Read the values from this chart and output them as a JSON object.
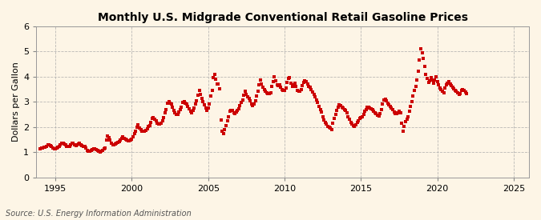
{
  "title": "Monthly U.S. Midgrade Conventional Retail Gasoline Prices",
  "ylabel": "Dollars per Gallon",
  "source": "Source: U.S. Energy Information Administration",
  "background_color": "#fdf5e6",
  "line_color": "#cc0000",
  "marker": "s",
  "markersize": 2.5,
  "linewidth": 0,
  "xlim": [
    1993.75,
    2026.0
  ],
  "ylim": [
    0,
    6
  ],
  "yticks": [
    0,
    1,
    2,
    3,
    4,
    5,
    6
  ],
  "xticks": [
    1995,
    2000,
    2005,
    2010,
    2015,
    2020,
    2025
  ],
  "grid_color": "#aaaaaa",
  "grid_linestyle": "--",
  "grid_alpha": 0.8,
  "prices": [
    1.12,
    1.17,
    1.18,
    1.2,
    1.21,
    1.24,
    1.28,
    1.31,
    1.27,
    1.22,
    1.17,
    1.14,
    1.13,
    1.17,
    1.2,
    1.23,
    1.3,
    1.37,
    1.35,
    1.34,
    1.29,
    1.24,
    1.22,
    1.24,
    1.3,
    1.35,
    1.36,
    1.31,
    1.26,
    1.28,
    1.33,
    1.35,
    1.3,
    1.26,
    1.24,
    1.22,
    1.16,
    1.08,
    1.03,
    1.05,
    1.08,
    1.1,
    1.12,
    1.13,
    1.1,
    1.07,
    1.04,
    1.02,
    1.03,
    1.08,
    1.12,
    1.18,
    1.48,
    1.65,
    1.57,
    1.47,
    1.35,
    1.29,
    1.3,
    1.32,
    1.36,
    1.4,
    1.43,
    1.47,
    1.54,
    1.6,
    1.56,
    1.52,
    1.48,
    1.45,
    1.45,
    1.47,
    1.52,
    1.62,
    1.73,
    1.83,
    1.98,
    2.09,
    1.97,
    1.91,
    1.85,
    1.84,
    1.85,
    1.86,
    1.93,
    2.01,
    2.07,
    2.18,
    2.34,
    2.38,
    2.32,
    2.25,
    2.16,
    2.12,
    2.11,
    2.14,
    2.26,
    2.38,
    2.55,
    2.69,
    2.96,
    3.0,
    2.96,
    2.9,
    2.79,
    2.66,
    2.55,
    2.49,
    2.51,
    2.61,
    2.7,
    2.8,
    2.97,
    3.02,
    2.96,
    2.9,
    2.81,
    2.72,
    2.63,
    2.57,
    2.65,
    2.75,
    2.9,
    3.04,
    3.26,
    3.45,
    3.3,
    3.15,
    3.02,
    2.88,
    2.76,
    2.65,
    2.76,
    2.93,
    3.22,
    3.44,
    3.96,
    4.09,
    3.9,
    3.72,
    3.71,
    3.51,
    2.27,
    1.82,
    1.73,
    1.89,
    2.07,
    2.26,
    2.4,
    2.62,
    2.66,
    2.66,
    2.58,
    2.52,
    2.59,
    2.66,
    2.72,
    2.84,
    2.97,
    3.06,
    3.27,
    3.43,
    3.3,
    3.19,
    3.13,
    3.05,
    2.92,
    2.85,
    2.92,
    3.05,
    3.22,
    3.42,
    3.69,
    3.88,
    3.71,
    3.58,
    3.5,
    3.43,
    3.37,
    3.32,
    3.32,
    3.37,
    3.6,
    3.8,
    3.99,
    3.85,
    3.68,
    3.65,
    3.67,
    3.59,
    3.49,
    3.45,
    3.45,
    3.55,
    3.78,
    3.94,
    3.97,
    3.74,
    3.6,
    3.68,
    3.74,
    3.6,
    3.44,
    3.42,
    3.42,
    3.5,
    3.65,
    3.77,
    3.84,
    3.81,
    3.72,
    3.62,
    3.58,
    3.5,
    3.38,
    3.29,
    3.21,
    3.08,
    2.97,
    2.82,
    2.7,
    2.59,
    2.42,
    2.28,
    2.19,
    2.11,
    2.03,
    1.99,
    1.96,
    1.91,
    2.15,
    2.34,
    2.51,
    2.67,
    2.8,
    2.89,
    2.85,
    2.8,
    2.75,
    2.7,
    2.65,
    2.55,
    2.42,
    2.3,
    2.2,
    2.13,
    2.06,
    2.04,
    2.09,
    2.18,
    2.26,
    2.34,
    2.37,
    2.42,
    2.51,
    2.62,
    2.7,
    2.78,
    2.79,
    2.75,
    2.72,
    2.68,
    2.63,
    2.58,
    2.53,
    2.48,
    2.44,
    2.52,
    2.68,
    2.9,
    3.09,
    3.11,
    3.03,
    2.96,
    2.89,
    2.82,
    2.76,
    2.68,
    2.6,
    2.54,
    2.52,
    2.56,
    2.63,
    2.56,
    2.16,
    1.85,
    2.04,
    2.22,
    2.32,
    2.41,
    2.62,
    2.81,
    3.01,
    3.22,
    3.45,
    3.63,
    3.88,
    4.21,
    4.67,
    5.11,
    4.96,
    4.74,
    4.42,
    4.1,
    3.92,
    3.78,
    3.85,
    3.97,
    3.86,
    3.74,
    3.88,
    3.98,
    3.82,
    3.68,
    3.55,
    3.48,
    3.42,
    3.36,
    3.55,
    3.68,
    3.74,
    3.8,
    3.72,
    3.65,
    3.58,
    3.51,
    3.46,
    3.42,
    3.36,
    3.3,
    3.33,
    3.45,
    3.48,
    3.44,
    3.38,
    3.32
  ],
  "start_year": 1994,
  "start_month": 1
}
